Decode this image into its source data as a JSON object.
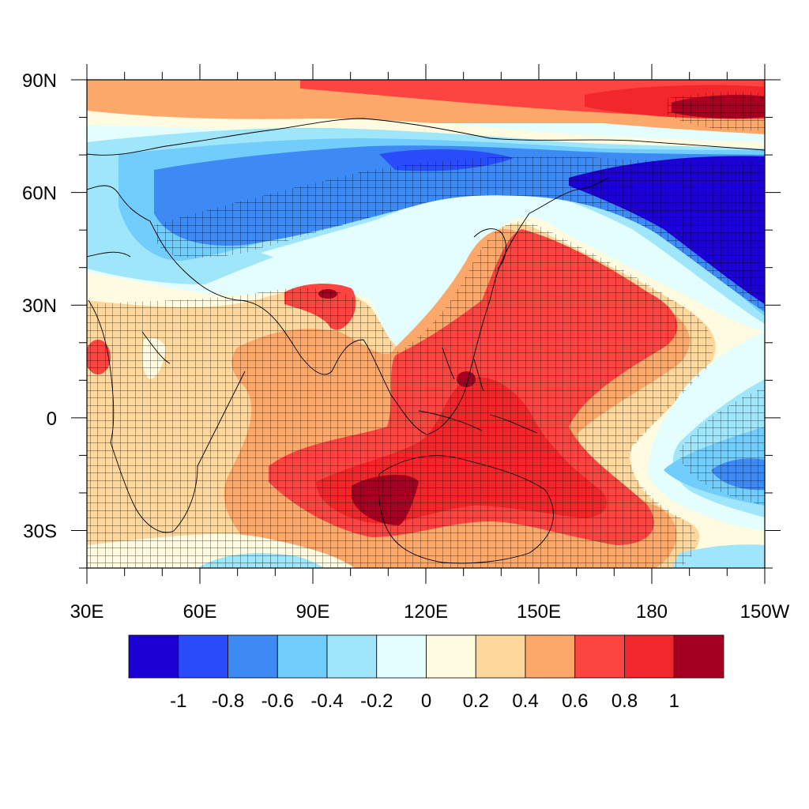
{
  "map": {
    "projection": "cylindrical-equidistant",
    "lon_range_deg": [
      30,
      210
    ],
    "lat_range_deg": [
      -40,
      90
    ],
    "x_ticks": [
      {
        "lon": 30,
        "label": "30E"
      },
      {
        "lon": 60,
        "label": "60E"
      },
      {
        "lon": 90,
        "label": "90E"
      },
      {
        "lon": 120,
        "label": "120E"
      },
      {
        "lon": 150,
        "label": "150E"
      },
      {
        "lon": 180,
        "label": "180"
      },
      {
        "lon": 210,
        "label": "150W"
      }
    ],
    "y_ticks": [
      {
        "lat": 90,
        "label": "90N"
      },
      {
        "lat": 60,
        "label": "60N"
      },
      {
        "lat": 30,
        "label": "30N"
      },
      {
        "lat": 0,
        "label": "0"
      },
      {
        "lat": -30,
        "label": "30S"
      }
    ],
    "hatching": "significance cross-hatching over the positive anomaly regions and the high-latitude negative regions"
  },
  "colorbar": {
    "colors": [
      "#1c00d4",
      "#2a4dfc",
      "#3d8af5",
      "#71cdfb",
      "#9fe6fb",
      "#e4fefe",
      "#fffbe1",
      "#fdd79b",
      "#fda86b",
      "#fc4440",
      "#f2272b",
      "#a50021"
    ],
    "labels": [
      "-1",
      "-0.8",
      "-0.6",
      "-0.4",
      "-0.2",
      "0",
      "0.2",
      "0.4",
      "0.6",
      "0.8",
      "1"
    ]
  }
}
